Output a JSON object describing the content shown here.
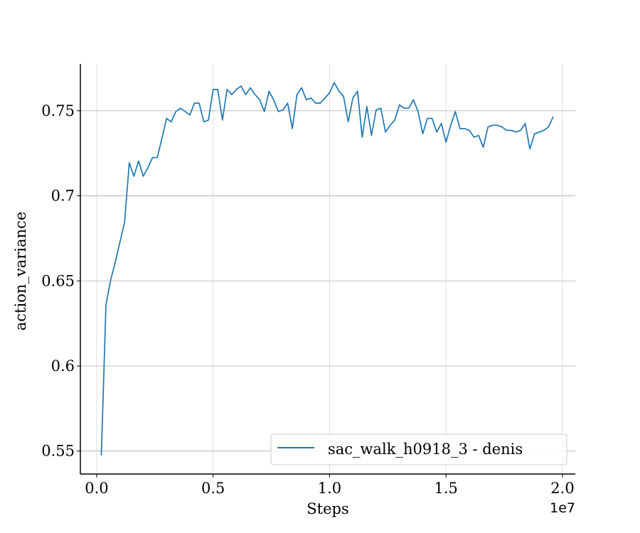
{
  "chart_data": {
    "type": "line",
    "title": "",
    "xlabel": "Steps",
    "ylabel": "action_variance",
    "x_offset_label": "1e7",
    "xlim": [
      -0.07,
      2.055
    ],
    "ylim": [
      0.5365,
      0.7775
    ],
    "x_ticks": [
      0.0,
      0.5,
      1.0,
      1.5,
      2.0
    ],
    "x_tick_labels": [
      "0.0",
      "0.5",
      "1.0",
      "1.5",
      "2.0"
    ],
    "y_ticks": [
      0.55,
      0.6,
      0.65,
      0.7,
      0.75
    ],
    "y_tick_labels": [
      "0.55",
      "0.6",
      "0.65",
      "0.7",
      "0.75"
    ],
    "grid": true,
    "legend_position": "lower-right",
    "series": [
      {
        "name": "sac_walk_h0918_3 - denis",
        "color": "#1f77b4",
        "x": [
          0.02,
          0.04,
          0.06,
          0.08,
          0.12,
          0.14,
          0.16,
          0.18,
          0.2,
          0.22,
          0.24,
          0.26,
          0.28,
          0.3,
          0.32,
          0.34,
          0.36,
          0.38,
          0.4,
          0.42,
          0.44,
          0.46,
          0.48,
          0.5,
          0.52,
          0.54,
          0.56,
          0.58,
          0.6,
          0.62,
          0.64,
          0.66,
          0.68,
          0.7,
          0.72,
          0.74,
          0.76,
          0.78,
          0.8,
          0.82,
          0.84,
          0.86,
          0.88,
          0.9,
          0.92,
          0.94,
          0.96,
          0.98,
          1.0,
          1.02,
          1.04,
          1.06,
          1.08,
          1.1,
          1.12,
          1.14,
          1.16,
          1.18,
          1.2,
          1.22,
          1.24,
          1.26,
          1.28,
          1.3,
          1.32,
          1.34,
          1.36,
          1.38,
          1.4,
          1.42,
          1.44,
          1.46,
          1.48,
          1.5,
          1.52,
          1.54,
          1.56,
          1.58,
          1.6,
          1.62,
          1.64,
          1.66,
          1.68,
          1.7,
          1.72,
          1.74,
          1.76,
          1.78,
          1.8,
          1.82,
          1.84,
          1.86,
          1.88,
          1.9,
          1.92,
          1.94,
          1.96
        ],
        "values": [
          0.5475,
          0.636,
          0.6505,
          0.661,
          0.6845,
          0.7195,
          0.7115,
          0.7205,
          0.7115,
          0.7165,
          0.7225,
          0.7225,
          0.7335,
          0.7455,
          0.7435,
          0.7495,
          0.7515,
          0.7495,
          0.7475,
          0.7545,
          0.7545,
          0.7435,
          0.7445,
          0.7625,
          0.7625,
          0.7445,
          0.7625,
          0.7595,
          0.7625,
          0.7645,
          0.7595,
          0.7635,
          0.7595,
          0.7565,
          0.7495,
          0.7615,
          0.7565,
          0.7495,
          0.7505,
          0.7545,
          0.7395,
          0.7595,
          0.7635,
          0.7565,
          0.7575,
          0.7545,
          0.7545,
          0.7575,
          0.7605,
          0.7665,
          0.7615,
          0.7585,
          0.7435,
          0.7575,
          0.7615,
          0.7345,
          0.7525,
          0.7355,
          0.7505,
          0.7515,
          0.7375,
          0.7415,
          0.7445,
          0.7535,
          0.7515,
          0.7515,
          0.7565,
          0.7495,
          0.7365,
          0.7455,
          0.7455,
          0.7375,
          0.7425,
          0.7315,
          0.7415,
          0.7495,
          0.7395,
          0.7395,
          0.7385,
          0.7345,
          0.7355,
          0.7285,
          0.7405,
          0.7415,
          0.7415,
          0.7405,
          0.7385,
          0.7385,
          0.7375,
          0.7385,
          0.7425,
          0.7275,
          0.7365,
          0.7375,
          0.7385,
          0.7405,
          0.7465
        ]
      }
    ]
  }
}
